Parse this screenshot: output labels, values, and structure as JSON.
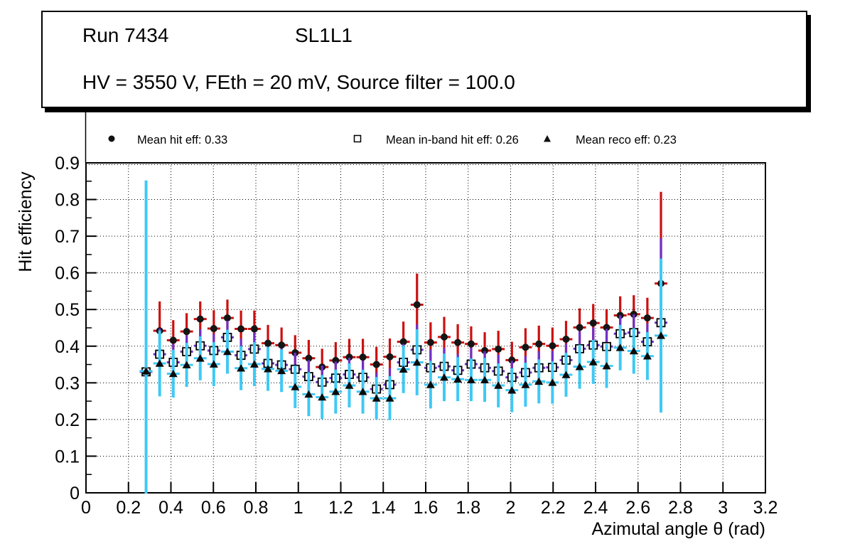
{
  "title_box": {
    "run_label": "Run 7434",
    "layer_label": "SL1L1",
    "conditions_label": "HV = 3550 V, FEth = 20 mV, Source filter = 100.0"
  },
  "legend": {
    "items": [
      {
        "marker": "filled-circle",
        "label": "Mean hit  eff: 0.33",
        "mean": 0.33,
        "error_color": "#cc0f0f"
      },
      {
        "marker": "open-square",
        "label": "Mean in-band hit eff: 0.26",
        "mean": 0.26,
        "error_color": "#7030c8"
      },
      {
        "marker": "filled-triangle",
        "label": "Mean reco eff: 0.23",
        "mean": 0.23,
        "error_color": "#3fc9f5"
      }
    ]
  },
  "chart_data": {
    "type": "scatter",
    "title": "",
    "xlabel": "Azimutal angle θ (rad)",
    "ylabel": "Hit efficiency",
    "xlim": [
      0,
      3.2
    ],
    "ylim": [
      0,
      0.9
    ],
    "grid": "dotted-both",
    "legend_position": "top",
    "x_tick_labels": [
      "0",
      "0.2",
      "0.4",
      "0.6",
      "0.8",
      "1",
      "1.2",
      "1.4",
      "1.6",
      "1.8",
      "2",
      "2.2",
      "2.4",
      "2.6",
      "2.8",
      "3",
      "3.2"
    ],
    "y_tick_labels": [
      "0",
      "0.1",
      "0.2",
      "0.3",
      "0.4",
      "0.5",
      "0.6",
      "0.7",
      "0.8",
      "0.9"
    ],
    "x_err": 0.03,
    "x": [
      0.283,
      0.347,
      0.411,
      0.474,
      0.538,
      0.602,
      0.666,
      0.73,
      0.793,
      0.857,
      0.921,
      0.985,
      1.049,
      1.112,
      1.176,
      1.24,
      1.304,
      1.368,
      1.431,
      1.495,
      1.559,
      1.623,
      1.687,
      1.751,
      1.814,
      1.878,
      1.942,
      2.006,
      2.07,
      2.133,
      2.197,
      2.261,
      2.325,
      2.389,
      2.452,
      2.516,
      2.58,
      2.644,
      2.708
    ],
    "series": [
      {
        "name": "Mean hit eff",
        "mean": 0.33,
        "marker": "filled-circle",
        "marker_color": "#151515",
        "error_color": "#cc0f0f",
        "values": [
          0.332,
          0.442,
          0.416,
          0.44,
          0.474,
          0.448,
          0.477,
          0.447,
          0.447,
          0.408,
          0.403,
          0.382,
          0.367,
          0.343,
          0.361,
          0.37,
          0.37,
          0.35,
          0.371,
          0.412,
          0.513,
          0.41,
          0.425,
          0.41,
          0.406,
          0.388,
          0.392,
          0.362,
          0.397,
          0.406,
          0.401,
          0.419,
          0.451,
          0.463,
          0.451,
          0.484,
          0.487,
          0.477,
          0.571
        ],
        "errors": [
          0.025,
          0.08,
          0.055,
          0.05,
          0.048,
          0.05,
          0.05,
          0.05,
          0.05,
          0.05,
          0.048,
          0.048,
          0.05,
          0.05,
          0.05,
          0.05,
          0.05,
          0.048,
          0.05,
          0.055,
          0.085,
          0.055,
          0.055,
          0.05,
          0.048,
          0.05,
          0.05,
          0.05,
          0.052,
          0.05,
          0.05,
          0.05,
          0.052,
          0.052,
          0.05,
          0.052,
          0.052,
          0.055,
          0.25
        ]
      },
      {
        "name": "Mean in-band hit eff",
        "mean": 0.26,
        "marker": "open-square",
        "marker_color": "#000000",
        "error_color": "#7030c8",
        "values": [
          0.33,
          0.378,
          0.356,
          0.385,
          0.401,
          0.388,
          0.424,
          0.375,
          0.392,
          0.353,
          0.349,
          0.337,
          0.317,
          0.302,
          0.313,
          0.323,
          0.315,
          0.283,
          0.295,
          0.356,
          0.39,
          0.341,
          0.345,
          0.334,
          0.351,
          0.341,
          0.332,
          0.315,
          0.328,
          0.341,
          0.342,
          0.362,
          0.393,
          0.403,
          0.399,
          0.434,
          0.437,
          0.412,
          0.464
        ],
        "errors": [
          0.025,
          0.07,
          0.05,
          0.045,
          0.045,
          0.045,
          0.045,
          0.045,
          0.045,
          0.045,
          0.045,
          0.045,
          0.045,
          0.045,
          0.045,
          0.045,
          0.045,
          0.045,
          0.045,
          0.05,
          0.07,
          0.05,
          0.05,
          0.045,
          0.045,
          0.045,
          0.045,
          0.045,
          0.045,
          0.045,
          0.045,
          0.045,
          0.048,
          0.048,
          0.048,
          0.05,
          0.05,
          0.05,
          0.23
        ]
      },
      {
        "name": "Mean reco eff",
        "mean": 0.23,
        "marker": "filled-triangle",
        "marker_color": "#0a0a0a",
        "error_color": "#3fc9f5",
        "values": [
          0.332,
          0.353,
          0.325,
          0.349,
          0.367,
          0.351,
          0.385,
          0.34,
          0.351,
          0.338,
          0.333,
          0.289,
          0.269,
          0.261,
          0.276,
          0.293,
          0.276,
          0.258,
          0.258,
          0.337,
          0.356,
          0.295,
          0.315,
          0.31,
          0.308,
          0.308,
          0.293,
          0.28,
          0.295,
          0.304,
          0.301,
          0.322,
          0.344,
          0.357,
          0.346,
          0.396,
          0.387,
          0.373,
          0.429
        ],
        "errors": [
          0.52,
          0.09,
          0.065,
          0.06,
          0.06,
          0.06,
          0.06,
          0.06,
          0.06,
          0.06,
          0.058,
          0.058,
          0.06,
          0.06,
          0.06,
          0.06,
          0.06,
          0.058,
          0.06,
          0.065,
          0.09,
          0.065,
          0.065,
          0.06,
          0.058,
          0.06,
          0.06,
          0.06,
          0.06,
          0.06,
          0.058,
          0.06,
          0.06,
          0.06,
          0.06,
          0.062,
          0.062,
          0.065,
          0.21
        ]
      }
    ]
  }
}
